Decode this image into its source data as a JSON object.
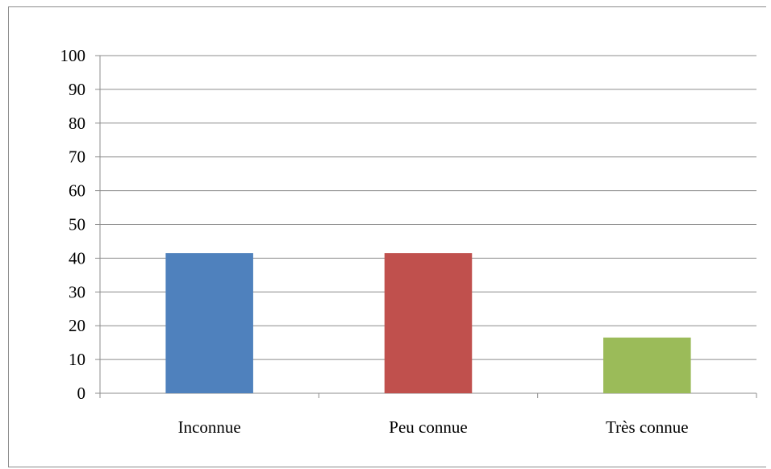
{
  "chart_data": {
    "type": "bar",
    "categories": [
      "Inconnue",
      "Peu connue",
      "Très connue"
    ],
    "values": [
      41.5,
      41.5,
      16.5
    ],
    "bar_colors": [
      "#4f81bd",
      "#c0504d",
      "#9bbb59"
    ],
    "ylim": [
      0,
      100
    ],
    "yticks": [
      "0",
      "10",
      "20",
      "30",
      "40",
      "50",
      "60",
      "70",
      "80",
      "90",
      "100"
    ],
    "grid": true,
    "legend": "none"
  }
}
